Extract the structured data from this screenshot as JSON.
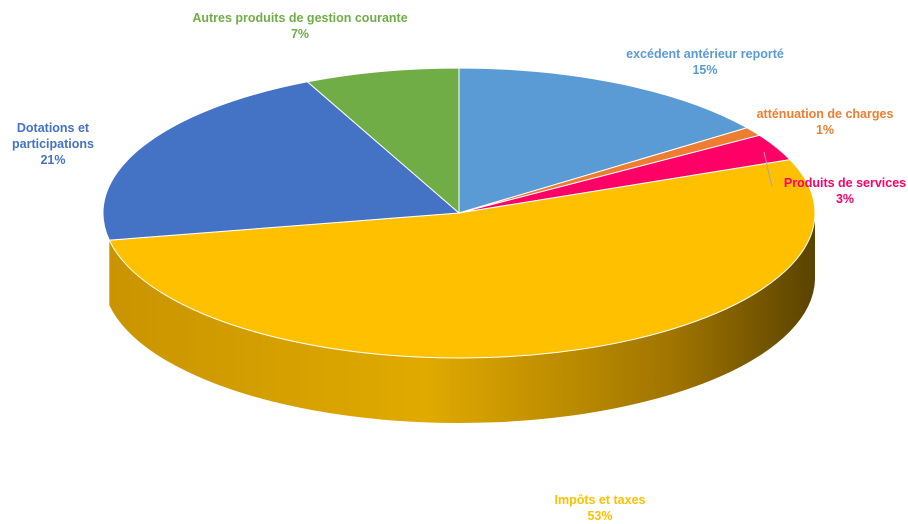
{
  "chart_data": {
    "type": "pie",
    "title": "",
    "slices": [
      {
        "label": "excédent antérieur reporté",
        "value": 15,
        "value_label": "15%",
        "color": "#5b9bd5"
      },
      {
        "label": "atténuation de charges",
        "value": 1,
        "value_label": "1%",
        "color": "#ed7d31"
      },
      {
        "label": "Produits de services",
        "value": 3,
        "value_label": "3%",
        "color": "#ff0066"
      },
      {
        "label": "Impôts et taxes",
        "value": 53,
        "value_label": "53%",
        "color": "#ffc000"
      },
      {
        "label": "Dotations et participations",
        "value": 21,
        "value_label": "21%",
        "color": "#4472c4"
      },
      {
        "label": "Autres produits de gestion courante",
        "value": 7,
        "value_label": "7%",
        "color": "#70ad47"
      }
    ],
    "label_colors": [
      "#5b9bd5",
      "#ed7d31",
      "#ff0066",
      "#ffc000",
      "#4472c4",
      "#70ad47"
    ],
    "legend": "none",
    "style": "3d-pie"
  }
}
